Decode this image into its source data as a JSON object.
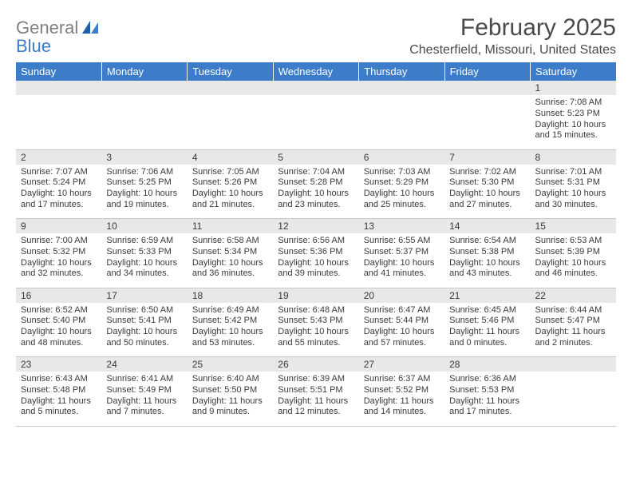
{
  "logo": {
    "word1": "General",
    "word2": "Blue"
  },
  "title": "February 2025",
  "location": "Chesterfield, Missouri, United States",
  "colors": {
    "header_bg": "#3d7cc9",
    "header_text": "#ffffff",
    "daynum_bg": "#e8e8e8",
    "text": "#3a3a3a",
    "rule": "#c8c8c8",
    "logo_gray": "#808080",
    "logo_blue": "#3d7cc9",
    "page_bg": "#ffffff"
  },
  "fonts": {
    "title_pt": 30,
    "location_pt": 16,
    "dayheader_pt": 13,
    "daynum_pt": 12,
    "cell_pt": 11
  },
  "dayHeaders": [
    "Sunday",
    "Monday",
    "Tuesday",
    "Wednesday",
    "Thursday",
    "Friday",
    "Saturday"
  ],
  "weeks": [
    [
      null,
      null,
      null,
      null,
      null,
      null,
      {
        "n": "1",
        "sr": "7:08 AM",
        "ss": "5:23 PM",
        "dl": "10 hours and 15 minutes."
      }
    ],
    [
      {
        "n": "2",
        "sr": "7:07 AM",
        "ss": "5:24 PM",
        "dl": "10 hours and 17 minutes."
      },
      {
        "n": "3",
        "sr": "7:06 AM",
        "ss": "5:25 PM",
        "dl": "10 hours and 19 minutes."
      },
      {
        "n": "4",
        "sr": "7:05 AM",
        "ss": "5:26 PM",
        "dl": "10 hours and 21 minutes."
      },
      {
        "n": "5",
        "sr": "7:04 AM",
        "ss": "5:28 PM",
        "dl": "10 hours and 23 minutes."
      },
      {
        "n": "6",
        "sr": "7:03 AM",
        "ss": "5:29 PM",
        "dl": "10 hours and 25 minutes."
      },
      {
        "n": "7",
        "sr": "7:02 AM",
        "ss": "5:30 PM",
        "dl": "10 hours and 27 minutes."
      },
      {
        "n": "8",
        "sr": "7:01 AM",
        "ss": "5:31 PM",
        "dl": "10 hours and 30 minutes."
      }
    ],
    [
      {
        "n": "9",
        "sr": "7:00 AM",
        "ss": "5:32 PM",
        "dl": "10 hours and 32 minutes."
      },
      {
        "n": "10",
        "sr": "6:59 AM",
        "ss": "5:33 PM",
        "dl": "10 hours and 34 minutes."
      },
      {
        "n": "11",
        "sr": "6:58 AM",
        "ss": "5:34 PM",
        "dl": "10 hours and 36 minutes."
      },
      {
        "n": "12",
        "sr": "6:56 AM",
        "ss": "5:36 PM",
        "dl": "10 hours and 39 minutes."
      },
      {
        "n": "13",
        "sr": "6:55 AM",
        "ss": "5:37 PM",
        "dl": "10 hours and 41 minutes."
      },
      {
        "n": "14",
        "sr": "6:54 AM",
        "ss": "5:38 PM",
        "dl": "10 hours and 43 minutes."
      },
      {
        "n": "15",
        "sr": "6:53 AM",
        "ss": "5:39 PM",
        "dl": "10 hours and 46 minutes."
      }
    ],
    [
      {
        "n": "16",
        "sr": "6:52 AM",
        "ss": "5:40 PM",
        "dl": "10 hours and 48 minutes."
      },
      {
        "n": "17",
        "sr": "6:50 AM",
        "ss": "5:41 PM",
        "dl": "10 hours and 50 minutes."
      },
      {
        "n": "18",
        "sr": "6:49 AM",
        "ss": "5:42 PM",
        "dl": "10 hours and 53 minutes."
      },
      {
        "n": "19",
        "sr": "6:48 AM",
        "ss": "5:43 PM",
        "dl": "10 hours and 55 minutes."
      },
      {
        "n": "20",
        "sr": "6:47 AM",
        "ss": "5:44 PM",
        "dl": "10 hours and 57 minutes."
      },
      {
        "n": "21",
        "sr": "6:45 AM",
        "ss": "5:46 PM",
        "dl": "11 hours and 0 minutes."
      },
      {
        "n": "22",
        "sr": "6:44 AM",
        "ss": "5:47 PM",
        "dl": "11 hours and 2 minutes."
      }
    ],
    [
      {
        "n": "23",
        "sr": "6:43 AM",
        "ss": "5:48 PM",
        "dl": "11 hours and 5 minutes."
      },
      {
        "n": "24",
        "sr": "6:41 AM",
        "ss": "5:49 PM",
        "dl": "11 hours and 7 minutes."
      },
      {
        "n": "25",
        "sr": "6:40 AM",
        "ss": "5:50 PM",
        "dl": "11 hours and 9 minutes."
      },
      {
        "n": "26",
        "sr": "6:39 AM",
        "ss": "5:51 PM",
        "dl": "11 hours and 12 minutes."
      },
      {
        "n": "27",
        "sr": "6:37 AM",
        "ss": "5:52 PM",
        "dl": "11 hours and 14 minutes."
      },
      {
        "n": "28",
        "sr": "6:36 AM",
        "ss": "5:53 PM",
        "dl": "11 hours and 17 minutes."
      },
      null
    ]
  ],
  "labels": {
    "sunrise": "Sunrise:",
    "sunset": "Sunset:",
    "daylight": "Daylight:"
  }
}
